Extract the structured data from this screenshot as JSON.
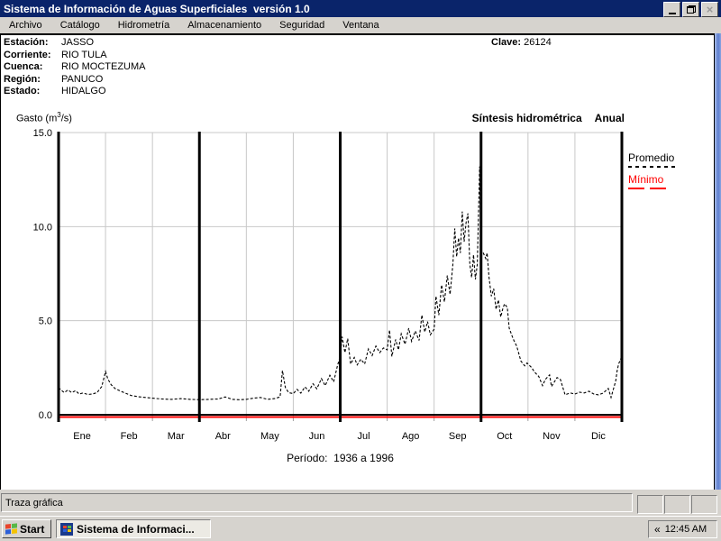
{
  "window": {
    "title": "Sistema de Información de Aguas Superficiales  versión 1.0",
    "controls": {
      "minimize": "minimize",
      "restore": "restore",
      "close": "close"
    }
  },
  "menu": {
    "items": [
      {
        "label": "Archivo"
      },
      {
        "label": "Catálogo"
      },
      {
        "label": "Hidrometría"
      },
      {
        "label": "Almacenamiento"
      },
      {
        "label": "Seguridad"
      },
      {
        "label": "Ventana"
      }
    ]
  },
  "station": {
    "rows": [
      {
        "label": "Estación:",
        "value": "JASSO"
      },
      {
        "label": "Corriente:",
        "value": "RIO TULA"
      },
      {
        "label": "Cuenca:",
        "value": "RIO MOCTEZUMA"
      },
      {
        "label": "Región:",
        "value": "PANUCO"
      },
      {
        "label": "Estado:",
        "value": "HIDALGO"
      }
    ],
    "clave_label": "Clave:",
    "clave_value": "26124"
  },
  "chart_data": {
    "type": "line",
    "title": "Síntesis hidrométrica",
    "subtitle_mode": "Anual",
    "ylabel_prefix": "Gasto (m",
    "ylabel_sup": "3",
    "ylabel_suffix": "/s)",
    "period_label": "Período:  1936 a 1996",
    "x_categories": [
      "Ene",
      "Feb",
      "Mar",
      "Abr",
      "May",
      "Jun",
      "Jul",
      "Ago",
      "Sep",
      "Oct",
      "Nov",
      "Dic"
    ],
    "y_ticks": [
      {
        "label": "0.0",
        "value": 0
      },
      {
        "label": "5.0",
        "value": 5
      },
      {
        "label": "10.0",
        "value": 10
      },
      {
        "label": "15.0",
        "value": 15
      }
    ],
    "ylim": [
      0,
      15
    ],
    "xlim_months": [
      0,
      12
    ],
    "quarter_lines_months": [
      0,
      3,
      6,
      9,
      12
    ],
    "grid": true,
    "legend_position": "right-outside",
    "series": [
      {
        "name": "Promedio",
        "color": "#000000",
        "style": "dashed",
        "points": [
          [
            0,
            1.45
          ],
          [
            0.06,
            1.3
          ],
          [
            0.12,
            1.18
          ],
          [
            0.2,
            1.32
          ],
          [
            0.28,
            1.18
          ],
          [
            0.36,
            1.28
          ],
          [
            0.44,
            1.1
          ],
          [
            0.52,
            1.16
          ],
          [
            0.62,
            1.08
          ],
          [
            0.72,
            1.1
          ],
          [
            0.82,
            1.18
          ],
          [
            0.92,
            1.5
          ],
          [
            1,
            2.3
          ],
          [
            1.05,
            1.9
          ],
          [
            1.12,
            1.6
          ],
          [
            1.2,
            1.4
          ],
          [
            1.3,
            1.28
          ],
          [
            1.42,
            1.15
          ],
          [
            1.55,
            1.02
          ],
          [
            1.7,
            0.96
          ],
          [
            1.85,
            0.92
          ],
          [
            2,
            0.88
          ],
          [
            2.2,
            0.84
          ],
          [
            2.4,
            0.82
          ],
          [
            2.6,
            0.86
          ],
          [
            2.8,
            0.82
          ],
          [
            3,
            0.8
          ],
          [
            3.2,
            0.82
          ],
          [
            3.4,
            0.84
          ],
          [
            3.55,
            0.95
          ],
          [
            3.7,
            0.82
          ],
          [
            3.85,
            0.8
          ],
          [
            4,
            0.82
          ],
          [
            4.15,
            0.88
          ],
          [
            4.3,
            0.92
          ],
          [
            4.45,
            0.82
          ],
          [
            4.6,
            0.86
          ],
          [
            4.72,
            0.95
          ],
          [
            4.77,
            2.35
          ],
          [
            4.83,
            1.45
          ],
          [
            4.9,
            1.18
          ],
          [
            5,
            1.12
          ],
          [
            5.08,
            1.35
          ],
          [
            5.16,
            1.15
          ],
          [
            5.25,
            1.48
          ],
          [
            5.33,
            1.25
          ],
          [
            5.42,
            1.65
          ],
          [
            5.5,
            1.38
          ],
          [
            5.6,
            1.92
          ],
          [
            5.68,
            1.55
          ],
          [
            5.78,
            2.1
          ],
          [
            5.86,
            1.75
          ],
          [
            5.94,
            2.6
          ],
          [
            6,
            3.1
          ],
          [
            6.04,
            4.15
          ],
          [
            6.1,
            3.3
          ],
          [
            6.16,
            4.05
          ],
          [
            6.22,
            2.7
          ],
          [
            6.3,
            3.05
          ],
          [
            6.36,
            2.65
          ],
          [
            6.44,
            2.95
          ],
          [
            6.52,
            2.7
          ],
          [
            6.6,
            3.5
          ],
          [
            6.68,
            3.15
          ],
          [
            6.76,
            3.65
          ],
          [
            6.84,
            3.3
          ],
          [
            6.92,
            3.55
          ],
          [
            7,
            3.45
          ],
          [
            7.05,
            4.5
          ],
          [
            7.1,
            3.1
          ],
          [
            7.18,
            4
          ],
          [
            7.24,
            3.45
          ],
          [
            7.3,
            4.3
          ],
          [
            7.38,
            3.75
          ],
          [
            7.46,
            4.6
          ],
          [
            7.52,
            3.9
          ],
          [
            7.6,
            4.45
          ],
          [
            7.68,
            3.95
          ],
          [
            7.74,
            5.3
          ],
          [
            7.8,
            4.4
          ],
          [
            7.86,
            4.95
          ],
          [
            7.92,
            4.25
          ],
          [
            8,
            4.55
          ],
          [
            8.04,
            6.3
          ],
          [
            8.1,
            5.3
          ],
          [
            8.16,
            6.9
          ],
          [
            8.22,
            6
          ],
          [
            8.28,
            7.4
          ],
          [
            8.34,
            6.4
          ],
          [
            8.4,
            8
          ],
          [
            8.44,
            9.9
          ],
          [
            8.48,
            8.4
          ],
          [
            8.52,
            9.4
          ],
          [
            8.56,
            8.6
          ],
          [
            8.6,
            10.8
          ],
          [
            8.64,
            9.2
          ],
          [
            8.68,
            10.2
          ],
          [
            8.72,
            10.7
          ],
          [
            8.76,
            8
          ],
          [
            8.8,
            7.3
          ],
          [
            8.84,
            8.5
          ],
          [
            8.88,
            7.2
          ],
          [
            8.92,
            8
          ],
          [
            8.95,
            11
          ],
          [
            8.97,
            13.2
          ],
          [
            9,
            8.6
          ],
          [
            9.04,
            8.65
          ],
          [
            9.1,
            8.3
          ],
          [
            9.13,
            8.6
          ],
          [
            9.17,
            7.3
          ],
          [
            9.22,
            6.3
          ],
          [
            9.27,
            6.7
          ],
          [
            9.32,
            5.6
          ],
          [
            9.37,
            6.1
          ],
          [
            9.42,
            5.2
          ],
          [
            9.46,
            5.6
          ],
          [
            9.5,
            5.9
          ],
          [
            9.56,
            5.7
          ],
          [
            9.6,
            4.6
          ],
          [
            9.66,
            4.2
          ],
          [
            9.7,
            3.95
          ],
          [
            9.76,
            3.65
          ],
          [
            9.85,
            2.85
          ],
          [
            9.93,
            2.6
          ],
          [
            9.98,
            2.75
          ],
          [
            10.08,
            2.5
          ],
          [
            10.14,
            2.27
          ],
          [
            10.23,
            2.03
          ],
          [
            10.31,
            1.55
          ],
          [
            10.37,
            1.88
          ],
          [
            10.46,
            2.12
          ],
          [
            10.5,
            1.5
          ],
          [
            10.62,
            1.98
          ],
          [
            10.69,
            1.88
          ],
          [
            10.79,
            1.06
          ],
          [
            10.9,
            1.16
          ],
          [
            11,
            1.1
          ],
          [
            11.1,
            1.2
          ],
          [
            11.2,
            1.16
          ],
          [
            11.3,
            1.25
          ],
          [
            11.4,
            1.1
          ],
          [
            11.5,
            1.06
          ],
          [
            11.6,
            1.15
          ],
          [
            11.71,
            1.4
          ],
          [
            11.77,
            0.92
          ],
          [
            11.87,
            1.8
          ],
          [
            11.9,
            2.35
          ],
          [
            11.93,
            2.7
          ],
          [
            11.98,
            3
          ]
        ]
      },
      {
        "name": "Mínimo",
        "color": "#ff0000",
        "style": "solid",
        "points": [
          [
            0,
            0
          ],
          [
            12,
            0
          ]
        ]
      }
    ]
  },
  "statusbar": {
    "text": "Traza gráfica"
  },
  "taskbar": {
    "start_label": "Start",
    "task_label": "Sistema de Informaci...",
    "chevron": "«",
    "clock": "12:45 AM"
  },
  "colors": {
    "titlebar": "#0a246a",
    "chrome": "#d6d3ce",
    "minimo_red": "#ff0000",
    "grid_gray": "#c8c8c8"
  }
}
